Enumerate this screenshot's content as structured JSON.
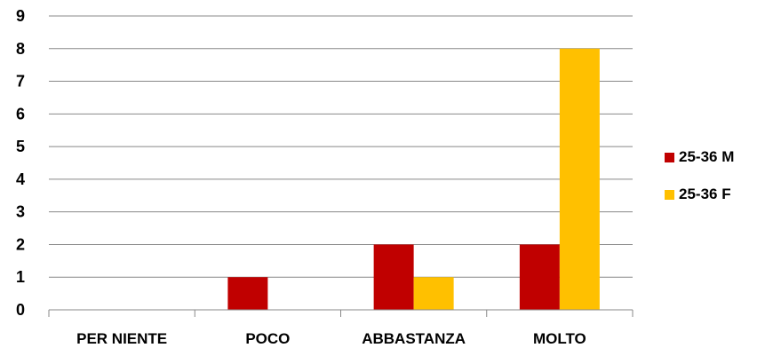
{
  "chart_data": {
    "type": "bar",
    "categories": [
      "PER NIENTE",
      "POCO",
      "ABBASTANZA",
      "MOLTO"
    ],
    "series": [
      {
        "name": "25-36 M",
        "color": "#C00000",
        "values": [
          0,
          1,
          2,
          2
        ]
      },
      {
        "name": "25-36 F",
        "color": "#FFC000",
        "values": [
          0,
          0,
          1,
          8
        ]
      }
    ],
    "yticks": [
      "0",
      "1",
      "2",
      "3",
      "4",
      "5",
      "6",
      "7",
      "8",
      "9"
    ],
    "ylim": [
      0,
      9
    ],
    "grid": true,
    "legend_position": "right",
    "title": "",
    "xlabel": "",
    "ylabel": ""
  }
}
